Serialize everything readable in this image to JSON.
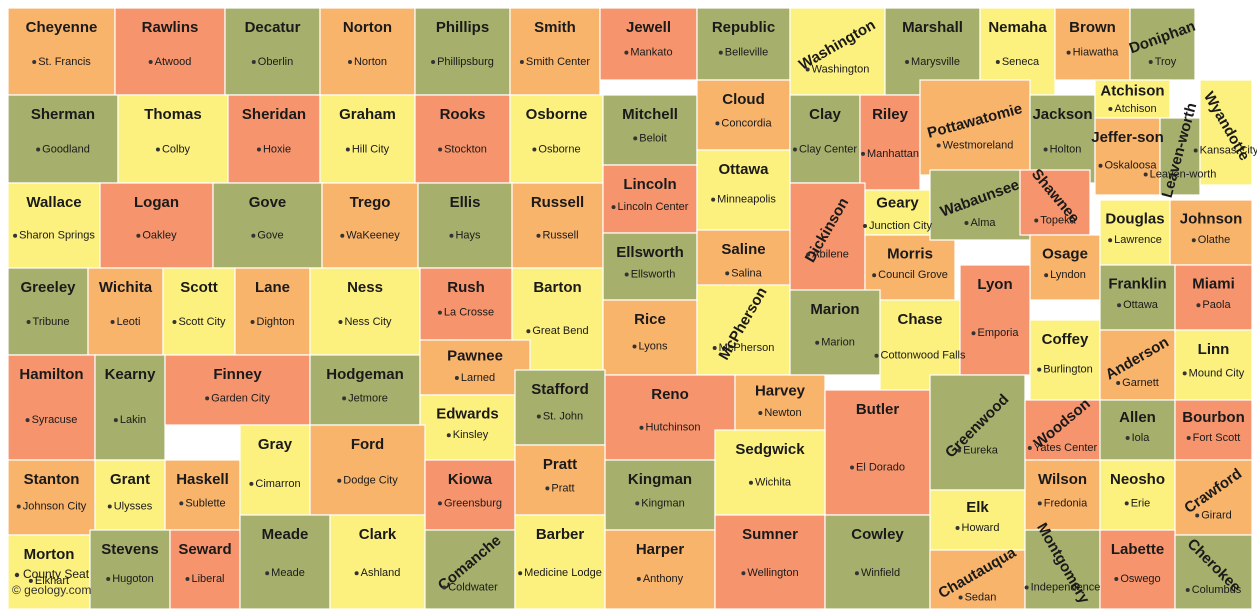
{
  "counties": [
    {
      "name": "Cheyenne",
      "seat": "St. Francis"
    },
    {
      "name": "Rawlins",
      "seat": "Atwood"
    },
    {
      "name": "Decatur",
      "seat": "Oberlin"
    },
    {
      "name": "Norton",
      "seat": "Norton"
    },
    {
      "name": "Phillips",
      "seat": "Phillipsburg"
    },
    {
      "name": "Smith",
      "seat": "Smith Center"
    },
    {
      "name": "Jewell",
      "seat": "Mankato"
    },
    {
      "name": "Republic",
      "seat": "Belleville"
    },
    {
      "name": "Washington",
      "seat": "Washington"
    },
    {
      "name": "Marshall",
      "seat": "Marysville"
    },
    {
      "name": "Nemaha",
      "seat": "Seneca"
    },
    {
      "name": "Brown",
      "seat": "Hiawatha"
    },
    {
      "name": "Doniphan",
      "seat": "Troy"
    },
    {
      "name": "Sherman",
      "seat": "Goodland"
    },
    {
      "name": "Thomas",
      "seat": "Colby"
    },
    {
      "name": "Sheridan",
      "seat": "Hoxie"
    },
    {
      "name": "Graham",
      "seat": "Hill City"
    },
    {
      "name": "Rooks",
      "seat": "Stockton"
    },
    {
      "name": "Osborne",
      "seat": "Osborne"
    },
    {
      "name": "Mitchell",
      "seat": "Beloit"
    },
    {
      "name": "Cloud",
      "seat": "Concordia"
    },
    {
      "name": "Clay",
      "seat": "Clay Center"
    },
    {
      "name": "Riley",
      "seat": "Manhattan"
    },
    {
      "name": "Pottawatomie",
      "seat": "Westmoreland"
    },
    {
      "name": "Jackson",
      "seat": "Holton"
    },
    {
      "name": "Atchison",
      "seat": "Atchison"
    },
    {
      "name": "Jeffer-son",
      "seat": "Oskaloosa"
    },
    {
      "name": "Leaven-worth",
      "seat": "Leaven-worth"
    },
    {
      "name": "Wyandotte",
      "seat": "Kansas City"
    },
    {
      "name": "Wallace",
      "seat": "Sharon Springs"
    },
    {
      "name": "Logan",
      "seat": "Oakley"
    },
    {
      "name": "Gove",
      "seat": "Gove"
    },
    {
      "name": "Trego",
      "seat": "WaKeeney"
    },
    {
      "name": "Ellis",
      "seat": "Hays"
    },
    {
      "name": "Russell",
      "seat": "Russell"
    },
    {
      "name": "Lincoln",
      "seat": "Lincoln Center"
    },
    {
      "name": "Ottawa",
      "seat": "Minneapolis"
    },
    {
      "name": "Ellsworth",
      "seat": "Ellsworth"
    },
    {
      "name": "Saline",
      "seat": "Salina"
    },
    {
      "name": "Dickinson",
      "seat": "Abilene"
    },
    {
      "name": "Geary",
      "seat": "Junction City"
    },
    {
      "name": "Morris",
      "seat": "Council Grove"
    },
    {
      "name": "Wabaunsee",
      "seat": "Alma"
    },
    {
      "name": "Shawnee",
      "seat": "Topeka"
    },
    {
      "name": "Osage",
      "seat": "Lyndon"
    },
    {
      "name": "Douglas",
      "seat": "Lawrence"
    },
    {
      "name": "Johnson",
      "seat": "Olathe"
    },
    {
      "name": "Greeley",
      "seat": "Tribune"
    },
    {
      "name": "Wichita",
      "seat": "Leoti"
    },
    {
      "name": "Scott",
      "seat": "Scott City"
    },
    {
      "name": "Lane",
      "seat": "Dighton"
    },
    {
      "name": "Ness",
      "seat": "Ness City"
    },
    {
      "name": "Rush",
      "seat": "La Crosse"
    },
    {
      "name": "Barton",
      "seat": "Great Bend"
    },
    {
      "name": "Rice",
      "seat": "Lyons"
    },
    {
      "name": "McPherson",
      "seat": "McPherson"
    },
    {
      "name": "Marion",
      "seat": "Marion"
    },
    {
      "name": "Chase",
      "seat": "Cottonwood Falls"
    },
    {
      "name": "Lyon",
      "seat": "Emporia"
    },
    {
      "name": "Coffey",
      "seat": "Burlington"
    },
    {
      "name": "Franklin",
      "seat": "Ottawa"
    },
    {
      "name": "Miami",
      "seat": "Paola"
    },
    {
      "name": "Anderson",
      "seat": "Garnett"
    },
    {
      "name": "Linn",
      "seat": "Mound City"
    },
    {
      "name": "Hamilton",
      "seat": "Syracuse"
    },
    {
      "name": "Kearny",
      "seat": "Lakin"
    },
    {
      "name": "Finney",
      "seat": "Garden City"
    },
    {
      "name": "Hodgeman",
      "seat": "Jetmore"
    },
    {
      "name": "Pawnee",
      "seat": "Larned"
    },
    {
      "name": "Edwards",
      "seat": "Kinsley"
    },
    {
      "name": "Stafford",
      "seat": "St. John"
    },
    {
      "name": "Reno",
      "seat": "Hutchinson"
    },
    {
      "name": "Harvey",
      "seat": "Newton"
    },
    {
      "name": "Butler",
      "seat": "El Dorado"
    },
    {
      "name": "Greenwood",
      "seat": "Eureka"
    },
    {
      "name": "Woodson",
      "seat": "Yates Center"
    },
    {
      "name": "Allen",
      "seat": "Iola"
    },
    {
      "name": "Bourbon",
      "seat": "Fort Scott"
    },
    {
      "name": "Stanton",
      "seat": "Johnson City"
    },
    {
      "name": "Grant",
      "seat": "Ulysses"
    },
    {
      "name": "Haskell",
      "seat": "Sublette"
    },
    {
      "name": "Gray",
      "seat": "Cimarron"
    },
    {
      "name": "Ford",
      "seat": "Dodge City"
    },
    {
      "name": "Kiowa",
      "seat": "Greensburg"
    },
    {
      "name": "Pratt",
      "seat": "Pratt"
    },
    {
      "name": "Kingman",
      "seat": "Kingman"
    },
    {
      "name": "Sedgwick",
      "seat": "Wichita"
    },
    {
      "name": "Elk",
      "seat": "Howard"
    },
    {
      "name": "Wilson",
      "seat": "Fredonia"
    },
    {
      "name": "Neosho",
      "seat": "Erie"
    },
    {
      "name": "Crawford",
      "seat": "Girard"
    },
    {
      "name": "Morton",
      "seat": "Elkhart"
    },
    {
      "name": "Stevens",
      "seat": "Hugoton"
    },
    {
      "name": "Seward",
      "seat": "Liberal"
    },
    {
      "name": "Meade",
      "seat": "Meade"
    },
    {
      "name": "Clark",
      "seat": "Ashland"
    },
    {
      "name": "Comanche",
      "seat": "Coldwater"
    },
    {
      "name": "Barber",
      "seat": "Medicine Lodge"
    },
    {
      "name": "Harper",
      "seat": "Anthony"
    },
    {
      "name": "Sumner",
      "seat": "Wellington"
    },
    {
      "name": "Cowley",
      "seat": "Winfield"
    },
    {
      "name": "Chautauqua",
      "seat": "Sedan"
    },
    {
      "name": "Montgomery",
      "seat": "Independence"
    },
    {
      "name": "Labette",
      "seat": "Oswego"
    },
    {
      "name": "Cherokee",
      "seat": "Columbus"
    }
  ],
  "legend": "County Seat",
  "credit": "© geology.com"
}
